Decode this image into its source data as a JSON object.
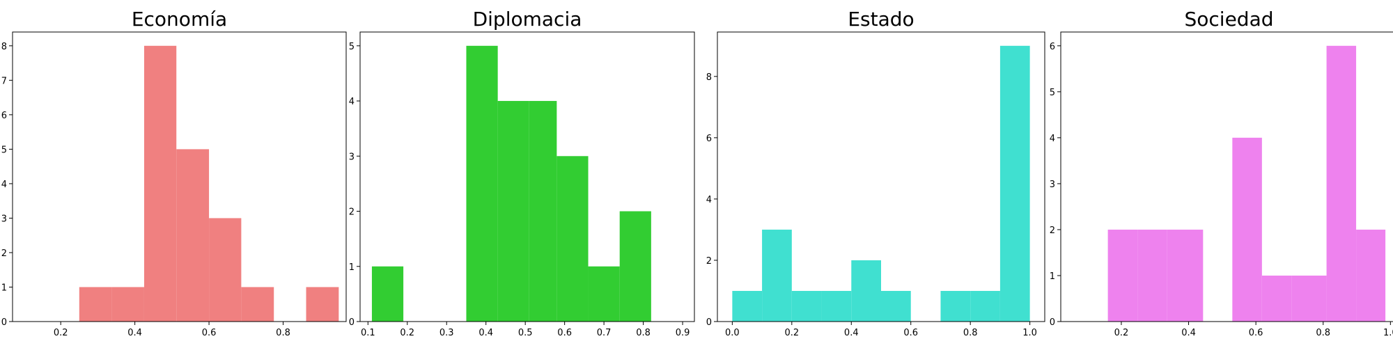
{
  "chart_data": [
    {
      "type": "bar",
      "title": "Economía",
      "color": "#f08080",
      "xlim": [
        0.07,
        0.97
      ],
      "ylim": [
        0,
        8.4
      ],
      "xticks": [
        "0.2",
        "0.4",
        "0.6",
        "0.8"
      ],
      "xtick_values": [
        0.2,
        0.4,
        0.6,
        0.8
      ],
      "yticks": [
        "0",
        "1",
        "2",
        "3",
        "4",
        "5",
        "6",
        "7",
        "8"
      ],
      "ytick_values": [
        0,
        1,
        2,
        3,
        4,
        5,
        6,
        7,
        8
      ],
      "bin_edges": [
        0.25,
        0.337,
        0.425,
        0.512,
        0.6,
        0.687,
        0.775,
        0.862,
        0.95
      ],
      "counts": [
        1,
        1,
        8,
        5,
        3,
        1,
        0,
        1
      ]
    },
    {
      "type": "bar",
      "title": "Diplomacia",
      "color": "#32cd32",
      "xlim": [
        0.08,
        0.93
      ],
      "ylim": [
        0,
        5.25
      ],
      "xticks": [
        "0.1",
        "0.2",
        "0.3",
        "0.4",
        "0.5",
        "0.6",
        "0.7",
        "0.8",
        "0.9"
      ],
      "xtick_values": [
        0.1,
        0.2,
        0.3,
        0.4,
        0.5,
        0.6,
        0.7,
        0.8,
        0.9
      ],
      "yticks": [
        "0",
        "1",
        "2",
        "3",
        "4",
        "5"
      ],
      "ytick_values": [
        0,
        1,
        2,
        3,
        4,
        5
      ],
      "bin_edges": [
        0.11,
        0.19,
        0.27,
        0.35,
        0.43,
        0.51,
        0.58,
        0.66,
        0.74,
        0.82
      ],
      "counts": [
        1,
        0,
        0,
        5,
        4,
        4,
        3,
        1,
        2
      ]
    },
    {
      "type": "bar",
      "title": "Estado",
      "color": "#40e0d0",
      "xlim": [
        -0.05,
        1.05
      ],
      "ylim": [
        0,
        9.45
      ],
      "xticks": [
        "0.0",
        "0.2",
        "0.4",
        "0.6",
        "0.8",
        "1.0"
      ],
      "xtick_values": [
        0,
        0.2,
        0.4,
        0.6,
        0.8,
        1.0
      ],
      "yticks": [
        "0",
        "2",
        "4",
        "6",
        "8"
      ],
      "ytick_values": [
        0,
        2,
        4,
        6,
        8
      ],
      "bin_edges": [
        0,
        0.1,
        0.2,
        0.3,
        0.4,
        0.5,
        0.6,
        0.7,
        0.8,
        0.9,
        1.0
      ],
      "counts": [
        1,
        3,
        1,
        1,
        2,
        1,
        0,
        1,
        1,
        9
      ]
    },
    {
      "type": "bar",
      "title": "Sociedad",
      "color": "#ee82ee",
      "xlim": [
        0.02,
        1.02
      ],
      "ylim": [
        0,
        6.3
      ],
      "xticks": [
        "0.2",
        "0.4",
        "0.6",
        "0.8",
        "1.0"
      ],
      "xtick_values": [
        0.2,
        0.4,
        0.6,
        0.8,
        1.0
      ],
      "yticks": [
        "0",
        "1",
        "2",
        "3",
        "4",
        "5",
        "6"
      ],
      "ytick_values": [
        0,
        1,
        2,
        3,
        4,
        5,
        6
      ],
      "bin_edges": [
        0.16,
        0.248,
        0.335,
        0.443,
        0.53,
        0.618,
        0.706,
        0.81,
        0.898,
        0.985
      ],
      "counts": [
        2,
        2,
        2,
        0,
        4,
        1,
        1,
        6,
        2
      ]
    }
  ]
}
